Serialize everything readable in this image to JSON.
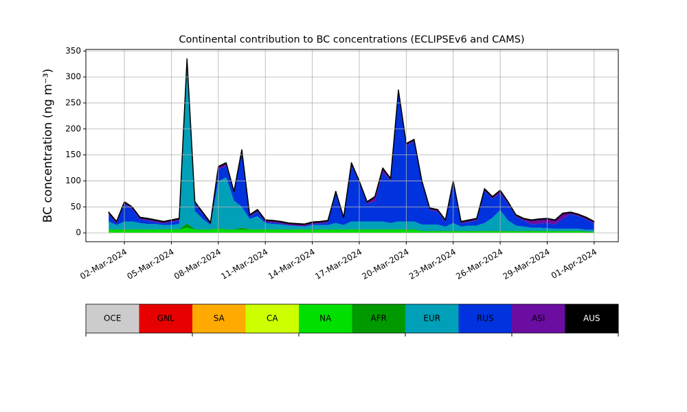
{
  "chart_data": {
    "type": "stacked_area",
    "title": "Continental contribution to BC concentrations (ECLIPSEv6 and CAMS)",
    "y_label": "BC concentration (ng m⁻³)",
    "x": [
      "2024-03-01T00:00",
      "2024-03-01T12:00",
      "2024-03-02T00:00",
      "2024-03-02T12:00",
      "2024-03-03T00:00",
      "2024-03-03T12:00",
      "2024-03-04T00:00",
      "2024-03-04T12:00",
      "2024-03-05T00:00",
      "2024-03-05T12:00",
      "2024-03-06T00:00",
      "2024-03-06T12:00",
      "2024-03-07T00:00",
      "2024-03-07T12:00",
      "2024-03-08T00:00",
      "2024-03-08T12:00",
      "2024-03-09T00:00",
      "2024-03-09T12:00",
      "2024-03-10T00:00",
      "2024-03-10T12:00",
      "2024-03-11T00:00",
      "2024-03-11T12:00",
      "2024-03-12T00:00",
      "2024-03-12T12:00",
      "2024-03-13T00:00",
      "2024-03-13T12:00",
      "2024-03-14T00:00",
      "2024-03-14T12:00",
      "2024-03-15T00:00",
      "2024-03-15T12:00",
      "2024-03-16T00:00",
      "2024-03-16T12:00",
      "2024-03-17T00:00",
      "2024-03-17T12:00",
      "2024-03-18T00:00",
      "2024-03-18T12:00",
      "2024-03-19T00:00",
      "2024-03-19T12:00",
      "2024-03-20T00:00",
      "2024-03-20T12:00",
      "2024-03-21T00:00",
      "2024-03-21T12:00",
      "2024-03-22T00:00",
      "2024-03-22T12:00",
      "2024-03-23T00:00",
      "2024-03-23T12:00",
      "2024-03-24T00:00",
      "2024-03-24T12:00",
      "2024-03-25T00:00",
      "2024-03-25T12:00",
      "2024-03-26T00:00",
      "2024-03-26T12:00",
      "2024-03-27T00:00",
      "2024-03-27T12:00",
      "2024-03-28T00:00",
      "2024-03-28T12:00",
      "2024-03-29T00:00",
      "2024-03-29T12:00",
      "2024-03-30T00:00",
      "2024-03-30T12:00",
      "2024-03-31T00:00",
      "2024-03-31T12:00",
      "2024-04-01T00:00"
    ],
    "series": [
      {
        "name": "OCE",
        "color": "#cccccc",
        "values": [
          0,
          0,
          0,
          0,
          0,
          0,
          0,
          0,
          0,
          0,
          0,
          0,
          0,
          0,
          0,
          0,
          0,
          0,
          0,
          0,
          0,
          0,
          0,
          0,
          0,
          0,
          0,
          0,
          0,
          0,
          0,
          0,
          0,
          0,
          0,
          0,
          0,
          0,
          0,
          0,
          0,
          0,
          0,
          0,
          0,
          0,
          0,
          0,
          0,
          0,
          0,
          0,
          0,
          0,
          0,
          0,
          0,
          0,
          0,
          0,
          0,
          0,
          0
        ]
      },
      {
        "name": "GNL",
        "color": "#e60000",
        "values": [
          0,
          0,
          0,
          0,
          0,
          0,
          0,
          0,
          0,
          0,
          0,
          0,
          0,
          0,
          0,
          0,
          0,
          0,
          0,
          0,
          0,
          0,
          0,
          0,
          0,
          0,
          0,
          0,
          0,
          0,
          0,
          0,
          0,
          0,
          0,
          0,
          0,
          0,
          0,
          0,
          0,
          0,
          0,
          0,
          0,
          0,
          0,
          0,
          0,
          0,
          0,
          0,
          0,
          0,
          0,
          0,
          0,
          0,
          0,
          0,
          0,
          0,
          0
        ]
      },
      {
        "name": "SA",
        "color": "#ffaa00",
        "values": [
          0,
          0,
          0,
          0,
          0,
          0,
          0,
          0,
          0,
          0,
          0,
          0,
          0,
          0,
          0,
          0,
          0,
          0,
          0,
          0,
          0,
          0,
          0,
          0,
          0,
          0,
          0,
          0,
          0,
          0,
          0,
          0,
          0,
          0,
          0,
          0,
          0,
          0,
          0,
          0,
          0,
          0,
          0,
          0,
          0,
          0,
          0,
          0,
          0,
          0,
          0,
          0,
          0,
          0,
          0,
          0,
          0,
          0,
          0,
          0,
          0,
          0,
          0
        ]
      },
      {
        "name": "CA",
        "color": "#ccff00",
        "values": [
          0,
          0,
          0,
          0,
          0,
          0,
          0,
          0,
          0,
          0,
          0,
          0,
          0,
          0,
          0,
          0,
          0,
          0,
          0,
          0,
          0,
          0,
          0,
          0,
          0,
          0,
          0,
          0,
          0,
          0,
          0,
          0,
          0,
          0,
          0,
          0,
          0,
          0,
          0,
          0,
          0,
          0,
          0,
          0,
          0,
          0,
          0,
          0,
          0,
          0,
          0,
          0,
          0,
          0,
          0,
          0,
          0,
          0,
          0,
          0,
          0,
          0,
          0
        ]
      },
      {
        "name": "NA",
        "color": "#00e000",
        "values": [
          6,
          6,
          6,
          6,
          6,
          6,
          6,
          6,
          6,
          6,
          10,
          6,
          6,
          6,
          8,
          6,
          6,
          6,
          6,
          6,
          6,
          6,
          6,
          6,
          6,
          6,
          6,
          6,
          6,
          6,
          6,
          6,
          6,
          6,
          6,
          6,
          6,
          6,
          6,
          6,
          3,
          3,
          3,
          3,
          3,
          3,
          3,
          3,
          3,
          3,
          3,
          3,
          3,
          3,
          3,
          3,
          3,
          3,
          3,
          3,
          3,
          2,
          2
        ]
      },
      {
        "name": "AFR",
        "color": "#009900",
        "values": [
          1,
          1,
          1,
          1,
          1,
          1,
          1,
          1,
          1,
          1,
          8,
          1,
          1,
          1,
          1,
          1,
          1,
          4,
          1,
          1,
          1,
          1,
          1,
          1,
          1,
          1,
          1,
          1,
          1,
          1,
          1,
          1,
          1,
          1,
          1,
          1,
          1,
          1,
          1,
          1,
          1,
          1,
          1,
          1,
          1,
          1,
          1,
          1,
          1,
          1,
          1,
          1,
          1,
          1,
          1,
          1,
          1,
          1,
          1,
          1,
          1,
          1,
          1
        ]
      },
      {
        "name": "EUR",
        "color": "#00a0b8",
        "values": [
          15,
          8,
          15,
          15,
          12,
          10,
          10,
          8,
          8,
          10,
          300,
          35,
          20,
          8,
          90,
          100,
          55,
          40,
          20,
          25,
          12,
          10,
          9,
          7,
          6,
          5,
          8,
          8,
          8,
          12,
          8,
          15,
          15,
          15,
          15,
          15,
          12,
          15,
          15,
          15,
          12,
          12,
          12,
          8,
          15,
          8,
          10,
          10,
          15,
          25,
          40,
          20,
          10,
          8,
          6,
          6,
          5,
          4,
          4,
          4,
          4,
          3,
          3
        ]
      },
      {
        "name": "RUS",
        "color": "#0033dd",
        "values": [
          14,
          3,
          34,
          24,
          7,
          7,
          4,
          3,
          6,
          7,
          13,
          14,
          9,
          1,
          23,
          22,
          14,
          106,
          4,
          9,
          2,
          3,
          2,
          1,
          1,
          1,
          2,
          3,
          5,
          57,
          11,
          109,
          74,
          34,
          39,
          94,
          82,
          247,
          146,
          154,
          80,
          28,
          25,
          9,
          77,
          6,
          7,
          10,
          62,
          37,
          32,
          32,
          17,
          12,
          6,
          8,
          10,
          8,
          19,
          28,
          24,
          20,
          12
        ]
      },
      {
        "name": "ASI",
        "color": "#6a0da0",
        "values": [
          3,
          3,
          3,
          3,
          3,
          3,
          3,
          3,
          3,
          3,
          3,
          3,
          3,
          3,
          5,
          5,
          3,
          3,
          3,
          3,
          3,
          3,
          3,
          3,
          3,
          3,
          3,
          3,
          3,
          3,
          3,
          3,
          3,
          3,
          8,
          8,
          3,
          5,
          3,
          3,
          3,
          3,
          3,
          3,
          3,
          3,
          3,
          3,
          3,
          3,
          5,
          3,
          3,
          3,
          8,
          8,
          8,
          8,
          10,
          3,
          3,
          3,
          3
        ]
      },
      {
        "name": "AUS",
        "color": "#000000",
        "values": [
          1,
          1,
          1,
          1,
          1,
          1,
          1,
          1,
          1,
          1,
          1,
          1,
          1,
          1,
          1,
          1,
          1,
          1,
          1,
          1,
          1,
          1,
          1,
          1,
          1,
          1,
          1,
          1,
          1,
          1,
          1,
          1,
          1,
          1,
          1,
          1,
          1,
          1,
          1,
          1,
          1,
          1,
          1,
          1,
          1,
          1,
          1,
          1,
          1,
          1,
          1,
          1,
          1,
          1,
          1,
          1,
          1,
          1,
          1,
          1,
          1,
          1,
          1
        ]
      }
    ],
    "xlim": [
      "2024-02-28T13:00",
      "2024-04-02T13:00"
    ],
    "xticks": [
      {
        "value": "2024-03-02T00:00",
        "label": "02-Mar-2024"
      },
      {
        "value": "2024-03-05T00:00",
        "label": "05-Mar-2024"
      },
      {
        "value": "2024-03-08T00:00",
        "label": "08-Mar-2024"
      },
      {
        "value": "2024-03-11T00:00",
        "label": "11-Mar-2024"
      },
      {
        "value": "2024-03-14T00:00",
        "label": "14-Mar-2024"
      },
      {
        "value": "2024-03-17T00:00",
        "label": "17-Mar-2024"
      },
      {
        "value": "2024-03-20T00:00",
        "label": "20-Mar-2024"
      },
      {
        "value": "2024-03-23T00:00",
        "label": "23-Mar-2024"
      },
      {
        "value": "2024-03-26T00:00",
        "label": "26-Mar-2024"
      },
      {
        "value": "2024-03-29T00:00",
        "label": "29-Mar-2024"
      },
      {
        "value": "2024-04-01T00:00",
        "label": "01-Apr-2024"
      }
    ],
    "ylim": [
      -17,
      353
    ],
    "yticks": [
      0,
      50,
      100,
      150,
      200,
      250,
      300,
      350
    ],
    "grid": true,
    "legend": "bottom"
  }
}
